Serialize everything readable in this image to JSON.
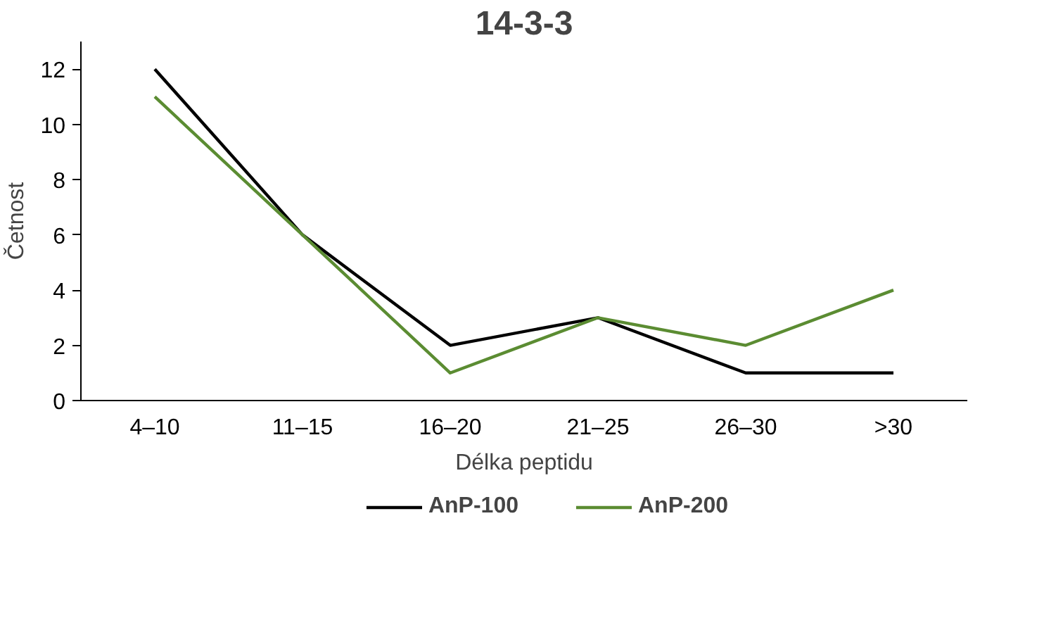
{
  "chart_data": {
    "type": "line",
    "title": "14-3-3",
    "xlabel": "Délka peptidu",
    "ylabel": "Četnost",
    "categories": [
      "4–10",
      "11–15",
      "16–20",
      "21–25",
      "26–30",
      ">30"
    ],
    "series": [
      {
        "name": "AnP-100",
        "color": "#000000",
        "values": [
          12,
          6,
          2,
          3,
          1,
          1
        ]
      },
      {
        "name": "AnP-200",
        "color": "#5b8c32",
        "values": [
          11,
          6,
          1,
          3,
          2,
          4
        ]
      }
    ],
    "ylim": [
      0,
      13
    ],
    "yticks": [
      0,
      2,
      4,
      6,
      8,
      10,
      12
    ],
    "grid": false,
    "legend": "bottom",
    "marker": "none",
    "line_style": "solid"
  }
}
